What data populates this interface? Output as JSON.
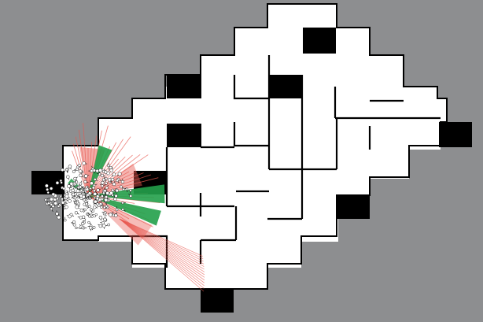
{
  "scene": {
    "background_color": "#8d8e90",
    "floor_color": "#ffffff",
    "wall_color": "#000000",
    "sensor_green": "#22a04a",
    "sensor_red": "#e8584f",
    "particle_color": "#ffffff"
  }
}
